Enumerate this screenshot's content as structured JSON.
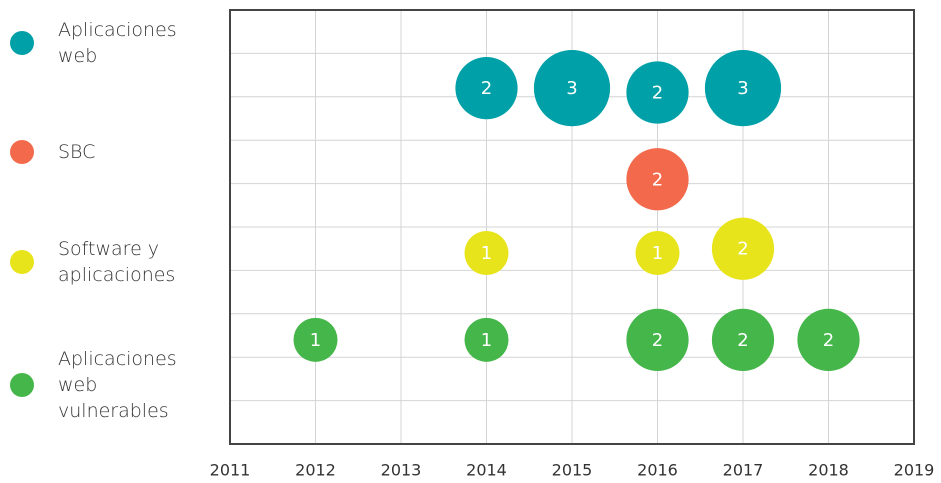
{
  "chart_data": {
    "type": "bubble",
    "xlim": [
      2011,
      2019
    ],
    "xticks": [
      2011,
      2012,
      2013,
      2014,
      2015,
      2016,
      2017,
      2018,
      2019
    ],
    "ylim": [
      0,
      10
    ],
    "yticks": [
      0,
      1,
      2,
      3,
      4,
      5,
      6,
      7,
      8,
      9,
      10
    ],
    "grid": true,
    "legend": "left",
    "series": [
      {
        "name": "Aplicaciones web",
        "color": "#00a0a8",
        "x": [
          2014,
          2015,
          2016,
          2017
        ],
        "y": [
          8.2,
          8.2,
          8.1,
          8.2
        ],
        "sizes": [
          2,
          3,
          2,
          3
        ]
      },
      {
        "name": "SBC",
        "color": "#f26a4b",
        "x": [
          2016
        ],
        "y": [
          6.1
        ],
        "sizes": [
          2
        ]
      },
      {
        "name": "Software y aplicaciones",
        "color": "#e8e41c",
        "x": [
          2014,
          2016,
          2017
        ],
        "y": [
          4.4,
          4.4,
          4.5
        ],
        "sizes": [
          1,
          1,
          2
        ]
      },
      {
        "name": "Aplicaciones web vulnerables",
        "color": "#45b649",
        "x": [
          2012,
          2014,
          2016,
          2017,
          2018
        ],
        "y": [
          2.4,
          2.4,
          2.4,
          2.4,
          2.4
        ],
        "sizes": [
          1,
          1,
          2,
          2,
          2
        ]
      }
    ]
  }
}
